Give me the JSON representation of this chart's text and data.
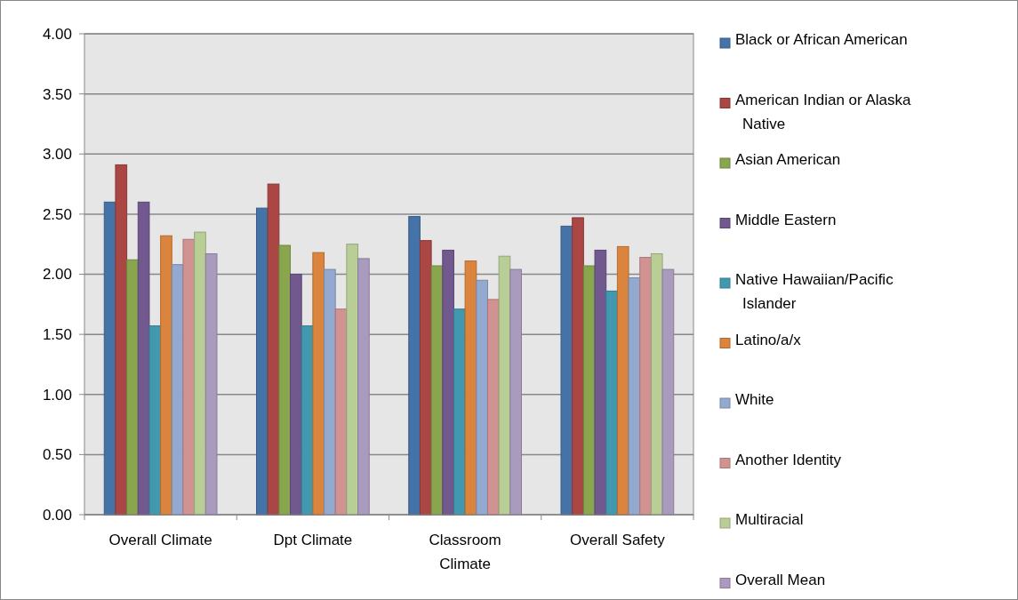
{
  "chart_data": {
    "type": "bar",
    "categories": [
      "Overall Climate",
      "Dpt Climate",
      "Classroom Climate",
      "Overall Safety"
    ],
    "series": [
      {
        "name": "Black or African American",
        "color": "#4572a7",
        "values": [
          2.6,
          2.55,
          2.48,
          2.4
        ]
      },
      {
        "name": "American Indian or Alaska Native",
        "color": "#aa4643",
        "values": [
          2.91,
          2.75,
          2.28,
          2.47
        ]
      },
      {
        "name": "Asian American",
        "color": "#89a54e",
        "values": [
          2.12,
          2.24,
          2.07,
          2.07
        ]
      },
      {
        "name": "Middle Eastern",
        "color": "#71588f",
        "values": [
          2.6,
          2.0,
          2.2,
          2.2
        ]
      },
      {
        "name": "Native Hawaiian/Pacific Islander",
        "color": "#4198af",
        "values": [
          1.57,
          1.57,
          1.71,
          1.86
        ]
      },
      {
        "name": "Latino/a/x",
        "color": "#db843d",
        "values": [
          2.32,
          2.18,
          2.11,
          2.23
        ]
      },
      {
        "name": "White",
        "color": "#93a9cf",
        "values": [
          2.08,
          2.04,
          1.95,
          1.97
        ]
      },
      {
        "name": "Another Identity",
        "color": "#d19392",
        "values": [
          2.29,
          1.71,
          1.79,
          2.14
        ]
      },
      {
        "name": "Multiracial",
        "color": "#b9cd96",
        "values": [
          2.35,
          2.25,
          2.15,
          2.17
        ]
      },
      {
        "name": "Overall Mean",
        "color": "#a99bbd",
        "values": [
          2.17,
          2.13,
          2.04,
          2.04
        ]
      }
    ],
    "ylim": [
      0,
      4
    ],
    "yticks": [
      {
        "value": 0,
        "label": "0.00"
      },
      {
        "value": 0.5,
        "label": "0.50"
      },
      {
        "value": 1,
        "label": "1.00"
      },
      {
        "value": 1.5,
        "label": "1.50"
      },
      {
        "value": 2,
        "label": "2.00"
      },
      {
        "value": 2.5,
        "label": "2.50"
      },
      {
        "value": 3,
        "label": "3.00"
      },
      {
        "value": 3.5,
        "label": "3.50"
      },
      {
        "value": 4,
        "label": "4.00"
      }
    ],
    "grid": "y",
    "legend": "right"
  }
}
